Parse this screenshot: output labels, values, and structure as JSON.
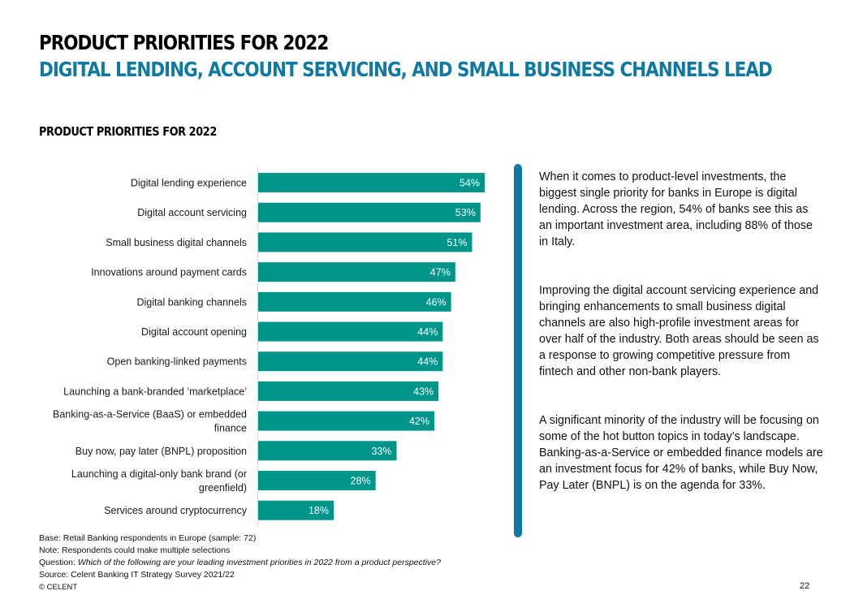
{
  "header": {
    "title": "PRODUCT PRIORITIES FOR 2022",
    "subtitle": "DIGITAL LENDING, ACCOUNT SERVICING, AND SMALL BUSINESS CHANNELS LEAD"
  },
  "chart_title": "PRODUCT PRIORITIES FOR 2022",
  "chart_data": {
    "type": "bar",
    "orientation": "horizontal",
    "title": "PRODUCT PRIORITIES FOR 2022",
    "xlabel": "",
    "ylabel": "",
    "unit": "%",
    "xlim": [
      0,
      60
    ],
    "grid": false,
    "legend": "none",
    "bar_color": "#00958a",
    "categories": [
      "Digital lending experience",
      "Digital account servicing",
      "Small business digital channels",
      "Innovations around payment cards",
      "Digital banking channels",
      "Digital account opening",
      "Open banking-linked payments",
      "Launching a bank-branded ’marketplace’",
      "Banking-as-a-Service (BaaS) or embedded finance",
      "Buy now, pay later (BNPL) proposition",
      "Launching a digital-only bank brand (or greenfield)",
      "Services around cryptocurrency"
    ],
    "category_lines": [
      [
        "Digital lending experience"
      ],
      [
        "Digital account servicing"
      ],
      [
        "Small business digital channels"
      ],
      [
        "Innovations around payment cards"
      ],
      [
        "Digital banking channels"
      ],
      [
        "Digital account opening"
      ],
      [
        "Open banking-linked payments"
      ],
      [
        "Launching a bank-branded ’marketplace’"
      ],
      [
        "Banking-as-a-Service (BaaS) or embedded",
        "finance"
      ],
      [
        "Buy now, pay later (BNPL) proposition"
      ],
      [
        "Launching a digital-only bank brand (or",
        "greenfield)"
      ],
      [
        "Services around cryptocurrency"
      ]
    ],
    "values": [
      54,
      53,
      51,
      47,
      46,
      44,
      44,
      43,
      42,
      33,
      28,
      18
    ],
    "data_labels": [
      "54%",
      "53%",
      "51%",
      "47%",
      "46%",
      "44%",
      "44%",
      "43%",
      "42%",
      "33%",
      "28%",
      "18%"
    ]
  },
  "commentary": {
    "paragraphs": [
      "When it comes to product-level investments, the biggest single priority for banks in Europe is digital lending. Across the region, 54% of banks see this as an important investment area, including 88% of those in Italy.",
      "Improving the digital account servicing experience and bringing enhancements to small business digital channels are also high-profile investment areas for over half of the industry. Both areas should be seen as a response to growing competitive pressure from fintech and other non-bank players.",
      "A significant minority of the industry will be focusing on some of the hot button topics in today’s landscape. Banking-as-a-Service or embedded finance models are an investment focus for 42% of banks, while Buy Now, Pay Later (BNPL) is on the agenda for 33%."
    ],
    "accent_color": "#0e7aa3"
  },
  "notes": {
    "base": "Base: Retail Banking respondents in Europe (sample: 72)",
    "note": "Note: Respondents could make multiple selections",
    "question_label": "Question: ",
    "question_text": "Which of the following are your leading investment priorities in 2022 from a product perspective?",
    "source": "Source: Celent Banking IT Strategy Survey 2021/22",
    "copyright": "© CELENT"
  },
  "page_number": "22"
}
